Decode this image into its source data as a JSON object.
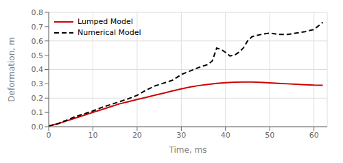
{
  "chart_data": {
    "type": "line",
    "xlabel": "Time, ms",
    "ylabel": "Deformation, m",
    "xlim": [
      0,
      63
    ],
    "ylim": [
      0,
      0.8
    ],
    "xticks": [
      0,
      10,
      20,
      30,
      40,
      50,
      60
    ],
    "yticks": [
      {
        "value": 0,
        "label": "0.0"
      },
      0.1,
      0.2,
      0.3,
      0.4,
      0.5,
      0.6,
      0.7,
      0.8
    ],
    "grid": true,
    "legend": "upper left",
    "series": [
      {
        "name": "Lumped Model",
        "color": "#cc0000",
        "line_style": "solid",
        "x": [
          0,
          2,
          4,
          6,
          8,
          10,
          12,
          14,
          16,
          18,
          20,
          22,
          24,
          26,
          28,
          30,
          32,
          34,
          36,
          38,
          40,
          42,
          44,
          46,
          48,
          50,
          52,
          54,
          56,
          58,
          60,
          62
        ],
        "values": [
          0.005,
          0.02,
          0.04,
          0.06,
          0.08,
          0.1,
          0.12,
          0.14,
          0.16,
          0.175,
          0.19,
          0.205,
          0.22,
          0.235,
          0.25,
          0.265,
          0.278,
          0.288,
          0.296,
          0.303,
          0.308,
          0.311,
          0.313,
          0.312,
          0.31,
          0.307,
          0.303,
          0.3,
          0.297,
          0.294,
          0.291,
          0.29
        ]
      },
      {
        "name": "Numerical Model",
        "color": "#000000",
        "line_style": "dashed",
        "x": [
          0,
          2,
          4,
          6,
          8,
          10,
          12,
          14,
          16,
          18,
          20,
          22,
          24,
          26,
          28,
          30,
          32,
          34,
          36,
          37,
          38,
          39,
          40,
          41,
          42,
          43,
          44,
          45,
          46,
          48,
          50,
          52,
          54,
          56,
          58,
          60,
          62
        ],
        "values": [
          0.005,
          0.02,
          0.045,
          0.07,
          0.09,
          0.11,
          0.135,
          0.155,
          0.175,
          0.195,
          0.22,
          0.255,
          0.285,
          0.305,
          0.325,
          0.365,
          0.39,
          0.415,
          0.435,
          0.46,
          0.55,
          0.54,
          0.52,
          0.495,
          0.5,
          0.52,
          0.55,
          0.6,
          0.63,
          0.645,
          0.655,
          0.645,
          0.645,
          0.655,
          0.665,
          0.68,
          0.73
        ]
      }
    ]
  }
}
